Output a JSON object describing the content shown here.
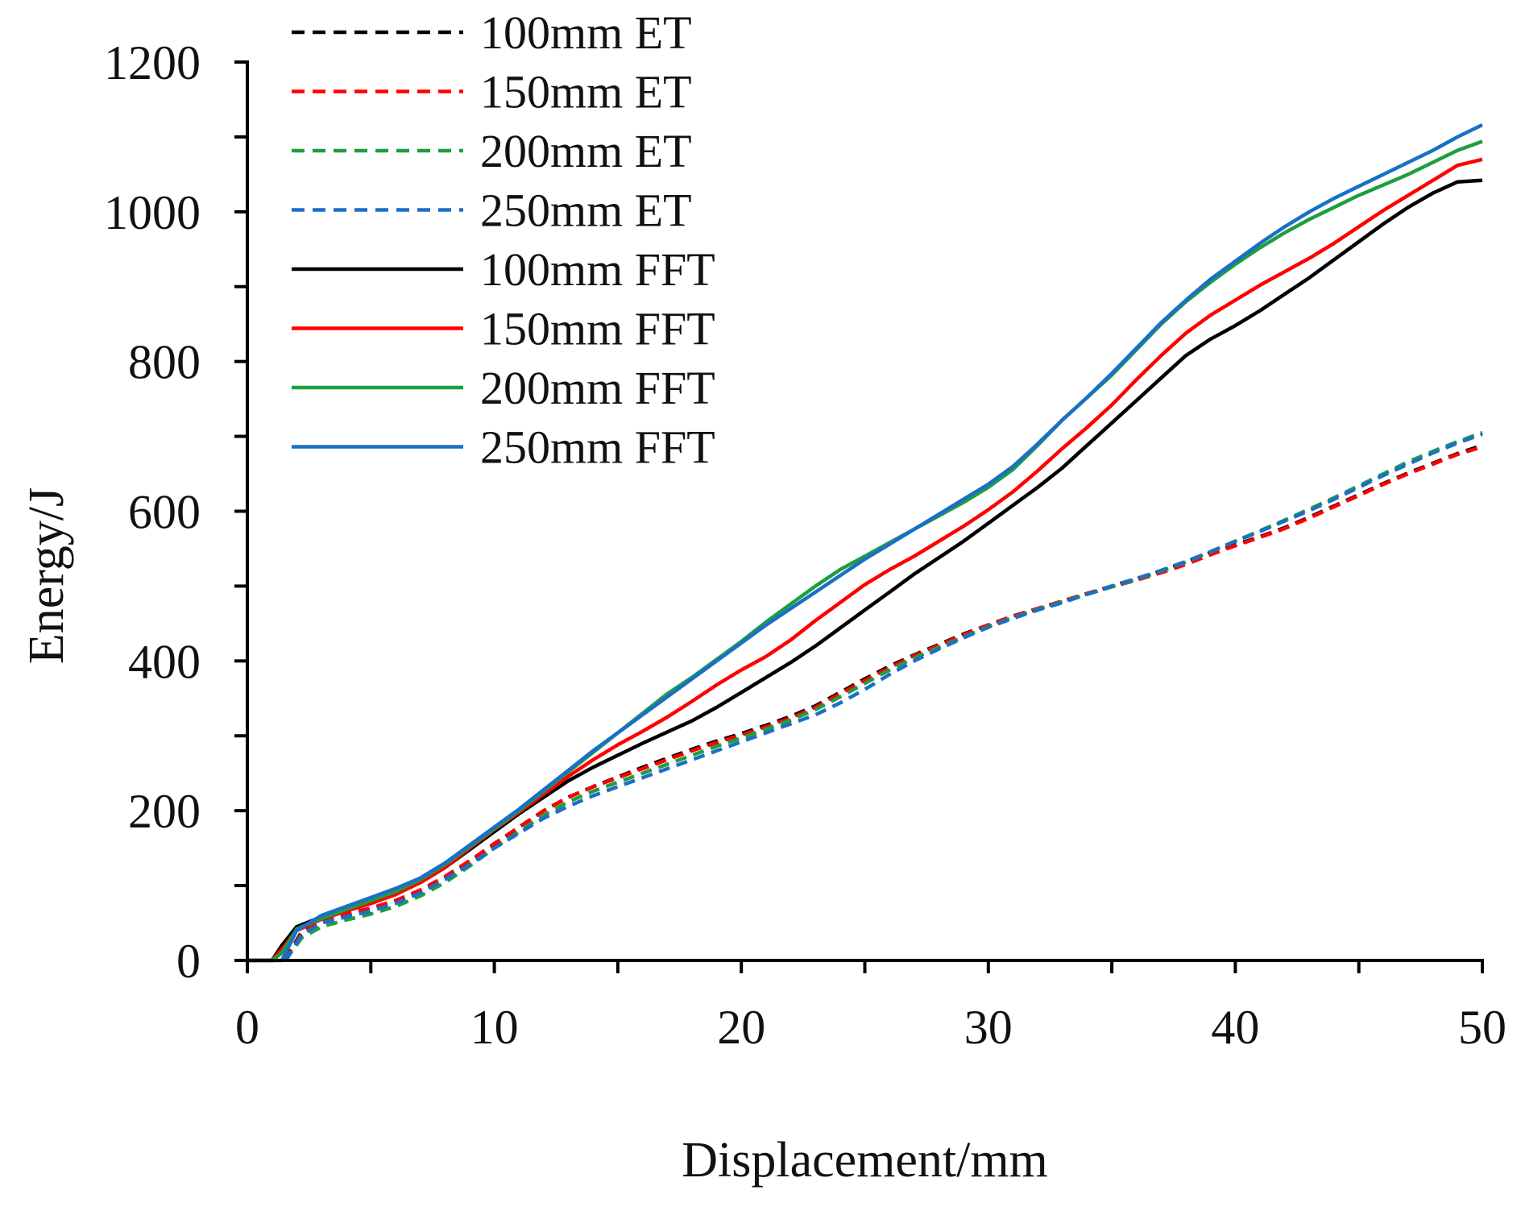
{
  "chart_data": {
    "type": "line",
    "xlabel": "Displacement/mm",
    "ylabel": "Energy/J",
    "xlim": [
      0,
      50
    ],
    "ylim": [
      0,
      1200
    ],
    "xticks": [
      0,
      10,
      20,
      30,
      40,
      50
    ],
    "yticks": [
      0,
      200,
      400,
      600,
      800,
      1000,
      1200
    ],
    "x_minor_step": 5,
    "y_minor_step": 100,
    "grid": false,
    "legend_position": "top-left",
    "series": [
      {
        "name": "100mm ET",
        "color": "#000000",
        "style": "dashed",
        "x": [
          0,
          1,
          1.6,
          2.2,
          3,
          4,
          5,
          6,
          7,
          8,
          9,
          10,
          11,
          12,
          13,
          14,
          15,
          16,
          17,
          18,
          19,
          20,
          21,
          22,
          23,
          24,
          25,
          26,
          27,
          28,
          29,
          30,
          31,
          32,
          33,
          34,
          35,
          36,
          37,
          38,
          39,
          40,
          41,
          42,
          43,
          44,
          45,
          46,
          47,
          48,
          49,
          50
        ],
        "y": [
          0,
          0,
          5,
          38,
          52,
          60,
          68,
          78,
          92,
          110,
          132,
          155,
          178,
          200,
          218,
          232,
          245,
          258,
          270,
          282,
          293,
          303,
          314,
          326,
          340,
          358,
          376,
          393,
          408,
          422,
          436,
          448,
          460,
          470,
          480,
          490,
          500,
          510,
          520,
          532,
          545,
          555,
          566,
          578,
          592,
          607,
          622,
          637,
          651,
          664,
          677,
          688
        ]
      },
      {
        "name": "150mm ET",
        "color": "#ff0000",
        "style": "dashed",
        "x": [
          0,
          1,
          1.6,
          2.2,
          3,
          4,
          5,
          6,
          7,
          8,
          9,
          10,
          11,
          12,
          13,
          14,
          15,
          16,
          17,
          18,
          19,
          20,
          21,
          22,
          23,
          24,
          25,
          26,
          27,
          28,
          29,
          30,
          31,
          32,
          33,
          34,
          35,
          36,
          37,
          38,
          39,
          40,
          41,
          42,
          43,
          44,
          45,
          46,
          47,
          48,
          49,
          50
        ],
        "y": [
          0,
          0,
          4,
          36,
          52,
          62,
          70,
          80,
          94,
          112,
          133,
          156,
          178,
          200,
          218,
          232,
          244,
          256,
          268,
          280,
          291,
          301,
          312,
          324,
          338,
          356,
          374,
          391,
          407,
          421,
          435,
          448,
          460,
          470,
          480,
          490,
          499,
          508,
          518,
          529,
          542,
          554,
          565,
          577,
          591,
          606,
          621,
          636,
          650,
          663,
          676,
          686
        ]
      },
      {
        "name": "200mm ET",
        "color": "#1f9e3e",
        "style": "dashed",
        "x": [
          0,
          1,
          1.6,
          2.2,
          3,
          4,
          5,
          6,
          7,
          8,
          9,
          10,
          11,
          12,
          13,
          14,
          15,
          16,
          17,
          18,
          19,
          20,
          21,
          22,
          23,
          24,
          25,
          26,
          27,
          28,
          29,
          30,
          31,
          32,
          33,
          34,
          35,
          36,
          37,
          38,
          39,
          40,
          41,
          42,
          43,
          44,
          45,
          46,
          47,
          48,
          49,
          50
        ],
        "y": [
          0,
          0,
          3,
          30,
          45,
          54,
          62,
          72,
          86,
          104,
          126,
          150,
          172,
          194,
          212,
          226,
          238,
          250,
          262,
          274,
          286,
          297,
          309,
          321,
          335,
          352,
          370,
          388,
          404,
          418,
          432,
          446,
          458,
          469,
          479,
          489,
          499,
          509,
          520,
          532,
          546,
          560,
          574,
          588,
          603,
          618,
          634,
          650,
          666,
          680,
          693,
          705
        ]
      },
      {
        "name": "250mm ET",
        "color": "#1a6fc7",
        "style": "dashed",
        "x": [
          0,
          1,
          1.6,
          2.2,
          3,
          4,
          5,
          6,
          7,
          8,
          9,
          10,
          11,
          12,
          13,
          14,
          15,
          16,
          17,
          18,
          19,
          20,
          21,
          22,
          23,
          24,
          25,
          26,
          27,
          28,
          29,
          30,
          31,
          32,
          33,
          34,
          35,
          36,
          37,
          38,
          39,
          40,
          41,
          42,
          43,
          44,
          45,
          46,
          47,
          48,
          49,
          50
        ],
        "y": [
          0,
          0,
          2,
          34,
          50,
          58,
          66,
          76,
          90,
          108,
          128,
          150,
          170,
          190,
          206,
          220,
          232,
          244,
          256,
          268,
          280,
          292,
          304,
          316,
          328,
          344,
          362,
          382,
          400,
          416,
          431,
          445,
          457,
          468,
          478,
          489,
          500,
          510,
          521,
          533,
          546,
          560,
          573,
          587,
          601,
          616,
          632,
          648,
          663,
          678,
          691,
          703
        ]
      },
      {
        "name": "100mm FFT",
        "color": "#000000",
        "style": "solid",
        "x": [
          0,
          1,
          1.4,
          2,
          3,
          4,
          5,
          6,
          7,
          8,
          9,
          10,
          11,
          12,
          13,
          14,
          15,
          16,
          17,
          18,
          19,
          20,
          21,
          22,
          23,
          24,
          25,
          26,
          27,
          28,
          29,
          30,
          31,
          32,
          33,
          34,
          35,
          36,
          37,
          38,
          39,
          40,
          41,
          42,
          43,
          44,
          45,
          46,
          47,
          48,
          49,
          50
        ],
        "y": [
          0,
          0,
          20,
          45,
          58,
          68,
          78,
          90,
          104,
          124,
          148,
          172,
          196,
          218,
          240,
          258,
          274,
          290,
          305,
          320,
          338,
          358,
          378,
          398,
          420,
          444,
          468,
          492,
          516,
          538,
          560,
          584,
          608,
          632,
          658,
          688,
          718,
          748,
          778,
          808,
          830,
          848,
          868,
          890,
          912,
          936,
          960,
          984,
          1006,
          1025,
          1040,
          1042
        ]
      },
      {
        "name": "150mm FFT",
        "color": "#ff0000",
        "style": "solid",
        "x": [
          0,
          1,
          1.4,
          2,
          3,
          4,
          5,
          6,
          7,
          8,
          9,
          10,
          11,
          12,
          13,
          14,
          15,
          16,
          17,
          18,
          19,
          20,
          21,
          22,
          23,
          24,
          25,
          26,
          27,
          28,
          29,
          30,
          31,
          32,
          33,
          34,
          35,
          36,
          37,
          38,
          39,
          40,
          41,
          42,
          43,
          44,
          45,
          46,
          47,
          48,
          49,
          50
        ],
        "y": [
          0,
          0,
          15,
          40,
          55,
          66,
          76,
          88,
          104,
          124,
          150,
          175,
          198,
          222,
          246,
          268,
          288,
          306,
          325,
          346,
          368,
          388,
          406,
          428,
          454,
          478,
          502,
          522,
          540,
          560,
          580,
          602,
          626,
          654,
          684,
          712,
          742,
          776,
          808,
          838,
          862,
          882,
          902,
          920,
          938,
          958,
          980,
          1002,
          1022,
          1042,
          1062,
          1070
        ]
      },
      {
        "name": "200mm FFT",
        "color": "#1f9e3e",
        "style": "solid",
        "x": [
          0,
          1,
          1.4,
          2,
          3,
          4,
          5,
          6,
          7,
          8,
          9,
          10,
          11,
          12,
          13,
          14,
          15,
          16,
          17,
          18,
          19,
          20,
          21,
          22,
          23,
          24,
          25,
          26,
          27,
          28,
          29,
          30,
          31,
          32,
          33,
          34,
          35,
          36,
          37,
          38,
          39,
          40,
          41,
          42,
          43,
          44,
          45,
          46,
          47,
          48,
          49,
          50
        ],
        "y": [
          0,
          0,
          10,
          42,
          56,
          68,
          80,
          92,
          108,
          128,
          152,
          176,
          200,
          226,
          252,
          278,
          304,
          330,
          356,
          378,
          402,
          426,
          452,
          476,
          500,
          522,
          540,
          558,
          576,
          594,
          612,
          632,
          656,
          688,
          722,
          752,
          782,
          816,
          850,
          880,
          906,
          930,
          952,
          972,
          990,
          1006,
          1022,
          1036,
          1050,
          1066,
          1082,
          1094
        ]
      },
      {
        "name": "250mm FFT",
        "color": "#1a6fc7",
        "style": "solid",
        "x": [
          0,
          1,
          1.4,
          2,
          3,
          4,
          5,
          6,
          7,
          8,
          9,
          10,
          11,
          12,
          13,
          14,
          15,
          16,
          17,
          18,
          19,
          20,
          21,
          22,
          23,
          24,
          25,
          26,
          27,
          28,
          29,
          30,
          31,
          32,
          33,
          34,
          35,
          36,
          37,
          38,
          39,
          40,
          41,
          42,
          43,
          44,
          45,
          46,
          47,
          48,
          49,
          50
        ],
        "y": [
          0,
          0,
          0,
          40,
          60,
          72,
          84,
          96,
          110,
          130,
          154,
          178,
          202,
          228,
          254,
          280,
          304,
          328,
          352,
          376,
          400,
          424,
          448,
          470,
          492,
          514,
          536,
          556,
          576,
          596,
          616,
          636,
          660,
          690,
          722,
          752,
          784,
          818,
          852,
          882,
          910,
          934,
          958,
          980,
          1000,
          1018,
          1034,
          1050,
          1066,
          1082,
          1100,
          1116
        ]
      }
    ]
  }
}
